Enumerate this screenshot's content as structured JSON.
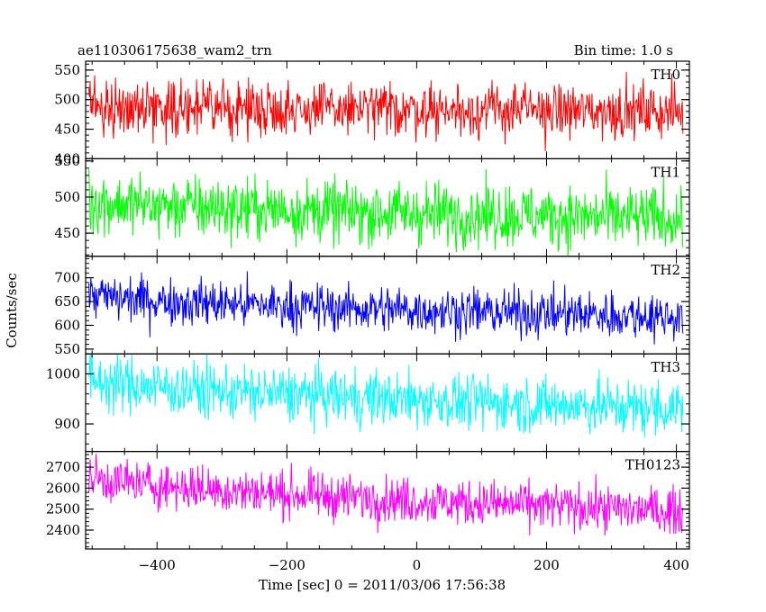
{
  "header": {
    "object_id": "ae110306175638_wam2_trn",
    "bin_time": "Bin time: 1.0 s"
  },
  "axis": {
    "ylabel": "Counts/sec",
    "xlabel": "Time [sec] 0 = 2011/03/06 17:56:38"
  },
  "chart_data": {
    "type": "line",
    "x_range": [
      -510,
      420
    ],
    "x_ticks": [
      -400,
      -200,
      0,
      200,
      400
    ],
    "x_minor_step": 50,
    "bin_time_s": 1.0,
    "panels": [
      {
        "name": "TH0",
        "color": "#ff0000",
        "ylim": [
          400,
          565
        ],
        "y_ticks": [
          400,
          450,
          500,
          550
        ],
        "y_minor_step": 10,
        "mean_start": 490,
        "mean_end": 480,
        "spread": 23
      },
      {
        "name": "TH1",
        "color": "#00ff00",
        "ylim": [
          418,
          553
        ],
        "y_ticks": [
          450,
          500,
          550
        ],
        "y_minor_step": 10,
        "mean_start": 495,
        "mean_end": 470,
        "spread": 22
      },
      {
        "name": "TH2",
        "color": "#0000ff",
        "ylim": [
          540,
          745
        ],
        "y_ticks": [
          550,
          600,
          650,
          700
        ],
        "y_minor_step": 10,
        "mean_start": 665,
        "mean_end": 618,
        "spread": 25
      },
      {
        "name": "TH3",
        "color": "#00ffff",
        "ylim": [
          845,
          1040
        ],
        "y_ticks": [
          900,
          1000
        ],
        "y_minor_step": 20,
        "mean_start": 990,
        "mean_end": 930,
        "spread": 28
      },
      {
        "name": "TH0123",
        "color": "#ff00ff",
        "ylim": [
          2310,
          2775
        ],
        "y_ticks": [
          2400,
          2500,
          2600,
          2700
        ],
        "y_minor_step": 20,
        "mean_start": 2660,
        "mean_end": 2490,
        "spread": 55
      }
    ]
  }
}
